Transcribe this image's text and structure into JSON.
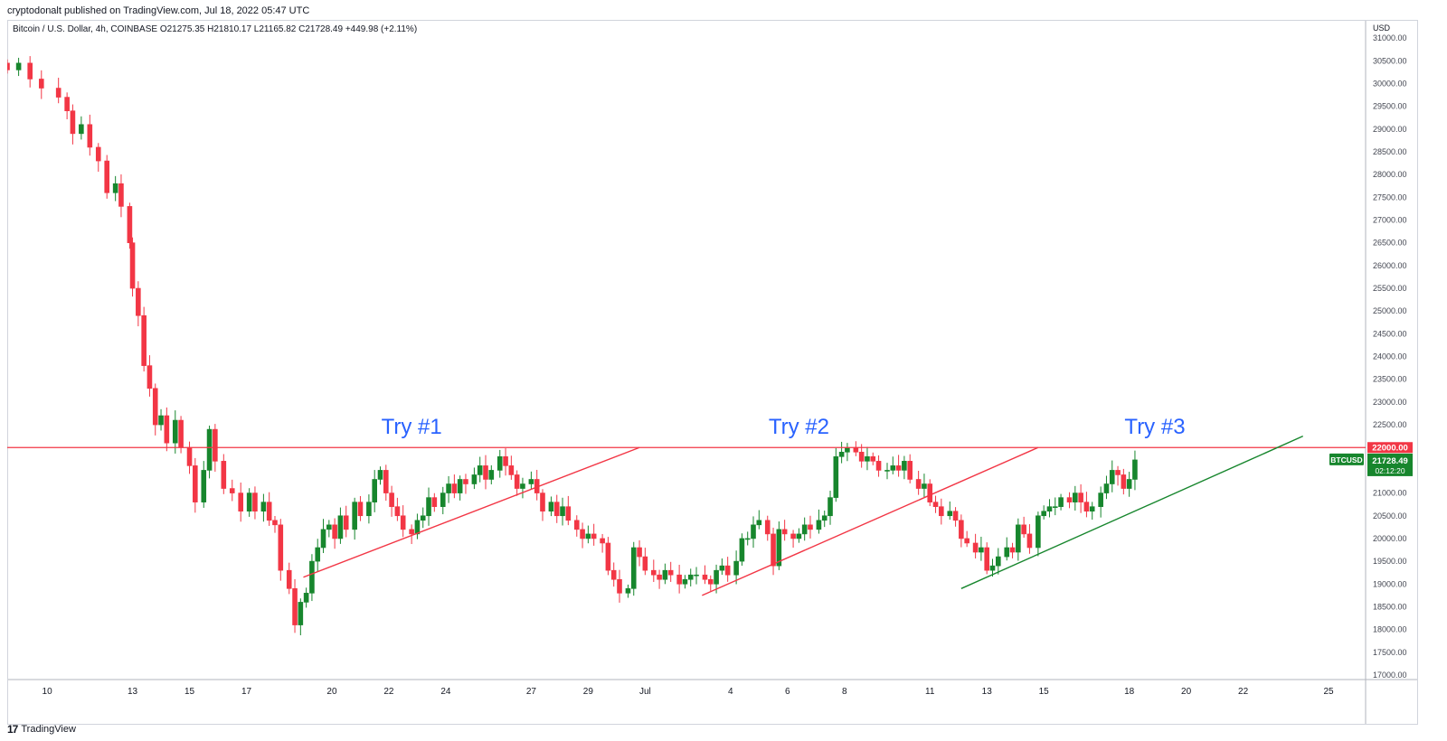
{
  "publisher_caption": "cryptodonalt published on TradingView.com, Jul 18, 2022 05:47 UTC",
  "branding": {
    "name": "TradingView",
    "logo_icon": "tradingview-logo-icon"
  },
  "chart_data": {
    "type": "candlestick",
    "symbol_line": {
      "name": "Bitcoin / U.S. Dollar, 4h, COINBASE",
      "open": "O21275.35",
      "high": "H21810.17",
      "low": "L21165.82",
      "close": "C21728.49",
      "change": "+449.98 (+2.11%)"
    },
    "currency_label": "USD",
    "ylim": [
      16900,
      31400
    ],
    "y_ticks": [
      "31000.00",
      "30500.00",
      "30000.00",
      "29500.00",
      "29000.00",
      "28500.00",
      "28000.00",
      "27500.00",
      "27000.00",
      "26500.00",
      "26000.00",
      "25500.00",
      "25000.00",
      "24500.00",
      "24000.00",
      "23500.00",
      "23000.00",
      "22500.00",
      "22000.00",
      "21500.00",
      "21000.00",
      "20500.00",
      "20000.00",
      "19500.00",
      "19000.00",
      "18500.00",
      "18000.00",
      "17500.00",
      "17000.00"
    ],
    "x_ticks": [
      {
        "label": "10",
        "t": 0
      },
      {
        "label": "13",
        "t": 3
      },
      {
        "label": "15",
        "t": 5
      },
      {
        "label": "17",
        "t": 7
      },
      {
        "label": "20",
        "t": 10
      },
      {
        "label": "22",
        "t": 12
      },
      {
        "label": "24",
        "t": 14
      },
      {
        "label": "27",
        "t": 17
      },
      {
        "label": "29",
        "t": 19
      },
      {
        "label": "Jul",
        "t": 21
      },
      {
        "label": "4",
        "t": 24
      },
      {
        "label": "6",
        "t": 26
      },
      {
        "label": "8",
        "t": 28
      },
      {
        "label": "11",
        "t": 31
      },
      {
        "label": "13",
        "t": 33
      },
      {
        "label": "15",
        "t": 35
      },
      {
        "label": "18",
        "t": 38
      },
      {
        "label": "20",
        "t": 40
      },
      {
        "label": "22",
        "t": 42
      },
      {
        "label": "25",
        "t": 45
      }
    ],
    "x_range_days": [
      -1.4,
      46.3
    ],
    "candle_days": [
      -1.4,
      38.2
    ],
    "close_series": [
      [
        -1.4,
        30300
      ],
      [
        -1.0,
        30450
      ],
      [
        -0.6,
        30100
      ],
      [
        -0.2,
        29900
      ],
      [
        0.4,
        29700
      ],
      [
        0.7,
        29400
      ],
      [
        0.9,
        28900
      ],
      [
        1.2,
        29100
      ],
      [
        1.5,
        28600
      ],
      [
        1.8,
        28300
      ],
      [
        2.1,
        27600
      ],
      [
        2.4,
        27800
      ],
      [
        2.6,
        27300
      ],
      [
        2.9,
        26500
      ],
      [
        3.0,
        25500
      ],
      [
        3.2,
        24900
      ],
      [
        3.4,
        23800
      ],
      [
        3.6,
        23300
      ],
      [
        3.8,
        22500
      ],
      [
        4.0,
        22700
      ],
      [
        4.2,
        22100
      ],
      [
        4.5,
        22600
      ],
      [
        4.7,
        22000
      ],
      [
        5.0,
        21600
      ],
      [
        5.2,
        20800
      ],
      [
        5.5,
        21500
      ],
      [
        5.7,
        22400
      ],
      [
        5.9,
        21700
      ],
      [
        6.2,
        21100
      ],
      [
        6.5,
        21000
      ],
      [
        6.8,
        20600
      ],
      [
        7.1,
        21000
      ],
      [
        7.3,
        20600
      ],
      [
        7.6,
        20800
      ],
      [
        7.8,
        20400
      ],
      [
        8.0,
        20300
      ],
      [
        8.2,
        19300
      ],
      [
        8.5,
        18900
      ],
      [
        8.7,
        18100
      ],
      [
        8.9,
        18600
      ],
      [
        9.1,
        18800
      ],
      [
        9.3,
        19500
      ],
      [
        9.5,
        19800
      ],
      [
        9.7,
        20200
      ],
      [
        9.9,
        20300
      ],
      [
        10.1,
        20000
      ],
      [
        10.3,
        20500
      ],
      [
        10.5,
        20200
      ],
      [
        10.8,
        20800
      ],
      [
        11.0,
        20500
      ],
      [
        11.3,
        20800
      ],
      [
        11.5,
        21300
      ],
      [
        11.7,
        21500
      ],
      [
        11.9,
        21000
      ],
      [
        12.1,
        20700
      ],
      [
        12.3,
        20500
      ],
      [
        12.5,
        20200
      ],
      [
        12.8,
        20100
      ],
      [
        13.0,
        20400
      ],
      [
        13.2,
        20500
      ],
      [
        13.4,
        20900
      ],
      [
        13.6,
        20700
      ],
      [
        13.9,
        21000
      ],
      [
        14.1,
        21200
      ],
      [
        14.3,
        21000
      ],
      [
        14.5,
        21300
      ],
      [
        14.7,
        21200
      ],
      [
        15.0,
        21400
      ],
      [
        15.2,
        21600
      ],
      [
        15.4,
        21300
      ],
      [
        15.6,
        21500
      ],
      [
        15.9,
        21800
      ],
      [
        16.1,
        21600
      ],
      [
        16.3,
        21400
      ],
      [
        16.5,
        21100
      ],
      [
        16.7,
        21200
      ],
      [
        17.0,
        21300
      ],
      [
        17.2,
        21000
      ],
      [
        17.4,
        20600
      ],
      [
        17.7,
        20800
      ],
      [
        17.9,
        20500
      ],
      [
        18.1,
        20700
      ],
      [
        18.3,
        20400
      ],
      [
        18.6,
        20200
      ],
      [
        18.8,
        20000
      ],
      [
        19.0,
        20100
      ],
      [
        19.2,
        20000
      ],
      [
        19.5,
        19900
      ],
      [
        19.7,
        19300
      ],
      [
        19.9,
        19100
      ],
      [
        20.1,
        18800
      ],
      [
        20.4,
        18900
      ],
      [
        20.6,
        19800
      ],
      [
        20.8,
        19600
      ],
      [
        21.0,
        19300
      ],
      [
        21.3,
        19200
      ],
      [
        21.5,
        19100
      ],
      [
        21.7,
        19300
      ],
      [
        21.9,
        19200
      ],
      [
        22.2,
        19000
      ],
      [
        22.4,
        19100
      ],
      [
        22.6,
        19200
      ],
      [
        22.8,
        19200
      ],
      [
        23.1,
        19100
      ],
      [
        23.3,
        19000
      ],
      [
        23.5,
        19300
      ],
      [
        23.7,
        19400
      ],
      [
        23.9,
        19200
      ],
      [
        24.2,
        19500
      ],
      [
        24.4,
        20000
      ],
      [
        24.6,
        20000
      ],
      [
        24.8,
        20300
      ],
      [
        25.0,
        20400
      ],
      [
        25.3,
        20100
      ],
      [
        25.5,
        19400
      ],
      [
        25.7,
        20200
      ],
      [
        25.9,
        20100
      ],
      [
        26.2,
        20000
      ],
      [
        26.4,
        20100
      ],
      [
        26.6,
        20300
      ],
      [
        26.8,
        20200
      ],
      [
        27.1,
        20400
      ],
      [
        27.3,
        20500
      ],
      [
        27.5,
        20900
      ],
      [
        27.7,
        21800
      ],
      [
        27.9,
        21900
      ],
      [
        28.1,
        22000
      ],
      [
        28.4,
        21900
      ],
      [
        28.6,
        21700
      ],
      [
        28.8,
        21800
      ],
      [
        29.0,
        21700
      ],
      [
        29.2,
        21500
      ],
      [
        29.5,
        21500
      ],
      [
        29.7,
        21600
      ],
      [
        29.9,
        21500
      ],
      [
        30.1,
        21700
      ],
      [
        30.3,
        21300
      ],
      [
        30.6,
        21100
      ],
      [
        30.8,
        21200
      ],
      [
        31.0,
        20800
      ],
      [
        31.2,
        20700
      ],
      [
        31.4,
        20500
      ],
      [
        31.7,
        20600
      ],
      [
        31.9,
        20400
      ],
      [
        32.1,
        20000
      ],
      [
        32.3,
        19900
      ],
      [
        32.6,
        19700
      ],
      [
        32.8,
        19800
      ],
      [
        33.0,
        19300
      ],
      [
        33.2,
        19400
      ],
      [
        33.4,
        19600
      ],
      [
        33.7,
        19800
      ],
      [
        33.9,
        19700
      ],
      [
        34.1,
        20300
      ],
      [
        34.3,
        20100
      ],
      [
        34.5,
        19800
      ],
      [
        34.8,
        20500
      ],
      [
        35.0,
        20600
      ],
      [
        35.2,
        20700
      ],
      [
        35.4,
        20700
      ],
      [
        35.6,
        20900
      ],
      [
        35.9,
        20800
      ],
      [
        36.1,
        21000
      ],
      [
        36.3,
        20800
      ],
      [
        36.5,
        20600
      ],
      [
        36.7,
        20700
      ],
      [
        37.0,
        21000
      ],
      [
        37.2,
        21200
      ],
      [
        37.4,
        21500
      ],
      [
        37.6,
        21400
      ],
      [
        37.8,
        21100
      ],
      [
        38.0,
        21300
      ],
      [
        38.2,
        21728.49
      ]
    ],
    "horizontal_lines": [
      {
        "name": "resistance",
        "price": 22000,
        "color": "#f23645",
        "label": "22000.00"
      }
    ],
    "trend_lines": [
      {
        "name": "trendline-1",
        "color": "#f23645",
        "p1": [
          9.0,
          19150
        ],
        "p2": [
          20.8,
          22000
        ]
      },
      {
        "name": "trendline-2",
        "color": "#f23645",
        "p1": [
          23.0,
          18750
        ],
        "p2": [
          34.8,
          22000
        ]
      },
      {
        "name": "trendline-3",
        "color": "#17862d",
        "p1": [
          32.1,
          18900
        ],
        "p2": [
          44.1,
          22250
        ]
      }
    ],
    "annotations": [
      {
        "text": "Try #1",
        "day": 12.8,
        "price": 22300
      },
      {
        "text": "Try #2",
        "day": 26.4,
        "price": 22300
      },
      {
        "text": "Try #3",
        "day": 38.9,
        "price": 22300
      }
    ],
    "price_tags": [
      {
        "symbol": "BTCUSD",
        "price": "21728.49",
        "countdown": "02:12:20",
        "color": "#17862d",
        "price_value": 21728.49
      },
      {
        "symbol": "",
        "price": "22000.00",
        "countdown": "",
        "color": "#f23645",
        "price_value": 22000
      }
    ],
    "colors": {
      "up": "#17862d",
      "down": "#f23645",
      "annotation": "#2962ff"
    }
  }
}
